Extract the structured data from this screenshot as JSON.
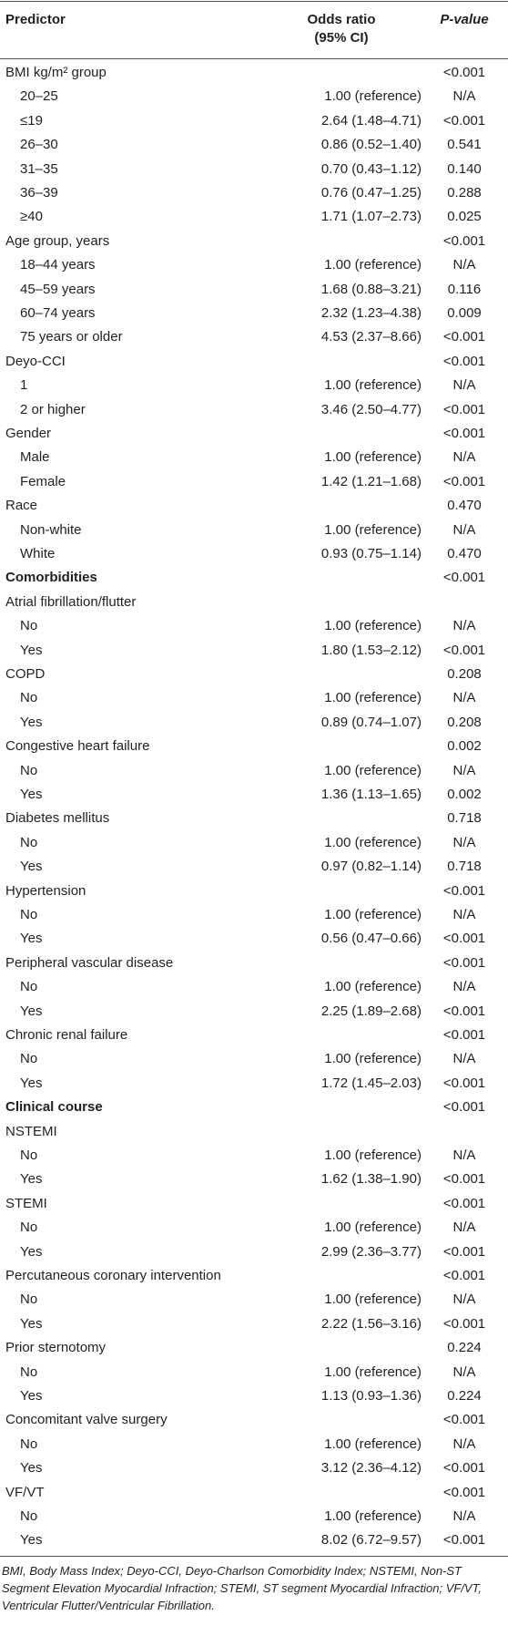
{
  "table": {
    "header": [
      "Predictor",
      "Odds ratio (95% CI)",
      "P-value"
    ],
    "sections": [
      {
        "groups": [
          {
            "label": "BMI kg/m² group",
            "p": "<0.001",
            "items": [
              {
                "label": "20–25",
                "or": "1.00 (reference)",
                "p": "N/A"
              },
              {
                "label": "≤19",
                "or": "2.64 (1.48–4.71)",
                "p": "<0.001"
              },
              {
                "label": "26–30",
                "or": "0.86 (0.52–1.40)",
                "p": "0.541"
              },
              {
                "label": "31–35",
                "or": "0.70 (0.43–1.12)",
                "p": "0.140"
              },
              {
                "label": "36–39",
                "or": "0.76 (0.47–1.25)",
                "p": "0.288"
              },
              {
                "label": "≥40",
                "or": "1.71 (1.07–2.73)",
                "p": "0.025"
              }
            ]
          },
          {
            "label": "Age group, years",
            "p": "<0.001",
            "items": [
              {
                "label": "18–44 years",
                "or": "1.00 (reference)",
                "p": "N/A"
              },
              {
                "label": "45–59 years",
                "or": "1.68 (0.88–3.21)",
                "p": "0.116"
              },
              {
                "label": "60–74 years",
                "or": "2.32 (1.23–4.38)",
                "p": "0.009"
              },
              {
                "label": "75 years or older",
                "or": "4.53 (2.37–8.66)",
                "p": "<0.001"
              }
            ]
          },
          {
            "label": "Deyo-CCI",
            "p": "<0.001",
            "items": [
              {
                "label": "1",
                "or": "1.00 (reference)",
                "p": "N/A"
              },
              {
                "label": "2 or higher",
                "or": "3.46 (2.50–4.77)",
                "p": "<0.001"
              }
            ]
          },
          {
            "label": "Gender",
            "p": "<0.001",
            "items": [
              {
                "label": "Male",
                "or": "1.00 (reference)",
                "p": "N/A"
              },
              {
                "label": "Female",
                "or": "1.42 (1.21–1.68)",
                "p": "<0.001"
              }
            ]
          },
          {
            "label": "Race",
            "p": "0.470",
            "items": [
              {
                "label": "Non-white",
                "or": "1.00 (reference)",
                "p": "N/A"
              },
              {
                "label": "White",
                "or": "0.93 (0.75–1.14)",
                "p": "0.470"
              }
            ]
          }
        ]
      },
      {
        "title": "Comorbidities",
        "p": "<0.001",
        "groups": [
          {
            "label": "Atrial fibrillation/flutter",
            "items": [
              {
                "label": "No",
                "or": "1.00 (reference)",
                "p": "N/A"
              },
              {
                "label": "Yes",
                "or": "1.80 (1.53–2.12)",
                "p": "<0.001"
              }
            ]
          },
          {
            "label": "COPD",
            "p": "0.208",
            "items": [
              {
                "label": "No",
                "or": "1.00 (reference)",
                "p": "N/A"
              },
              {
                "label": "Yes",
                "or": "0.89 (0.74–1.07)",
                "p": "0.208"
              }
            ]
          },
          {
            "label": "Congestive heart failure",
            "p": "0.002",
            "items": [
              {
                "label": "No",
                "or": "1.00 (reference)",
                "p": "N/A"
              },
              {
                "label": "Yes",
                "or": "1.36 (1.13–1.65)",
                "p": "0.002"
              }
            ]
          },
          {
            "label": "Diabetes mellitus",
            "p": "0.718",
            "items": [
              {
                "label": "No",
                "or": "1.00 (reference)",
                "p": "N/A"
              },
              {
                "label": "Yes",
                "or": "0.97 (0.82–1.14)",
                "p": "0.718"
              }
            ]
          },
          {
            "label": "Hypertension",
            "p": "<0.001",
            "items": [
              {
                "label": "No",
                "or": "1.00 (reference)",
                "p": "N/A"
              },
              {
                "label": "Yes",
                "or": "0.56 (0.47–0.66)",
                "p": "<0.001"
              }
            ]
          },
          {
            "label": "Peripheral vascular disease",
            "p": "<0.001",
            "items": [
              {
                "label": "No",
                "or": "1.00 (reference)",
                "p": "N/A"
              },
              {
                "label": "Yes",
                "or": "2.25 (1.89–2.68)",
                "p": "<0.001"
              }
            ]
          },
          {
            "label": "Chronic renal failure",
            "p": "<0.001",
            "items": [
              {
                "label": "No",
                "or": "1.00 (reference)",
                "p": "N/A"
              },
              {
                "label": "Yes",
                "or": "1.72 (1.45–2.03)",
                "p": "<0.001"
              }
            ]
          }
        ]
      },
      {
        "title": "Clinical course",
        "p": "<0.001",
        "groups": [
          {
            "label": "NSTEMI",
            "items": [
              {
                "label": "No",
                "or": "1.00 (reference)",
                "p": "N/A"
              },
              {
                "label": "Yes",
                "or": "1.62 (1.38–1.90)",
                "p": "<0.001"
              }
            ]
          },
          {
            "label": "STEMI",
            "p": "<0.001",
            "items": [
              {
                "label": "No",
                "or": "1.00 (reference)",
                "p": "N/A"
              },
              {
                "label": "Yes",
                "or": "2.99 (2.36–3.77)",
                "p": "<0.001"
              }
            ]
          },
          {
            "label": "Percutaneous coronary intervention",
            "p": "<0.001",
            "items": [
              {
                "label": "No",
                "or": "1.00 (reference)",
                "p": "N/A"
              },
              {
                "label": "Yes",
                "or": "2.22 (1.56–3.16)",
                "p": "<0.001"
              }
            ]
          },
          {
            "label": "Prior sternotomy",
            "p": "0.224",
            "items": [
              {
                "label": "No",
                "or": "1.00 (reference)",
                "p": "N/A"
              },
              {
                "label": "Yes",
                "or": "1.13 (0.93–1.36)",
                "p": "0.224"
              }
            ]
          },
          {
            "label": "Concomitant valve surgery",
            "p": "<0.001",
            "items": [
              {
                "label": "No",
                "or": "1.00 (reference)",
                "p": "N/A"
              },
              {
                "label": "Yes",
                "or": "3.12 (2.36–4.12)",
                "p": "<0.001"
              }
            ]
          },
          {
            "label": "VF/VT",
            "p": "<0.001",
            "items": [
              {
                "label": "No",
                "or": "1.00 (reference)",
                "p": "N/A"
              },
              {
                "label": "Yes",
                "or": "8.02 (6.72–9.57)",
                "p": "<0.001"
              }
            ]
          }
        ]
      }
    ],
    "footnote": "BMI, Body Mass Index; Deyo-CCI, Deyo-Charlson Comorbidity Index; NSTEMI, Non-ST Segment Elevation Myocardial Infraction; STEMI, ST segment Myocardial Infraction; VF/VT, Ventricular Flutter/Ventricular Fibrillation."
  }
}
